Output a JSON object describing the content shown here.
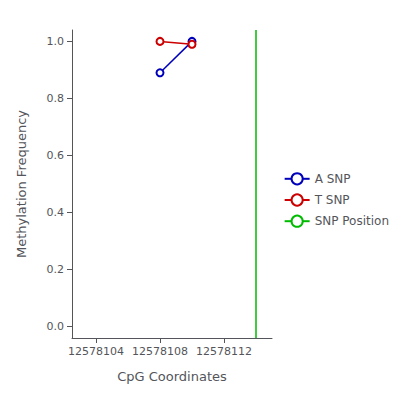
{
  "chart_data": {
    "type": "line",
    "xlabel": "CpG Coordinates",
    "ylabel": "Methylation Frequency",
    "x": [
      12578108,
      12578110
    ],
    "series": [
      {
        "name": "A SNP",
        "color": "#0000bb",
        "marker": "circle",
        "values": [
          0.89,
          1.0
        ]
      },
      {
        "name": "T SNP",
        "color": "#cc0000",
        "marker": "circle",
        "values": [
          1.0,
          0.99
        ]
      },
      {
        "name": "SNP Position",
        "type": "vline",
        "color": "#00bb00",
        "x": 12578114
      }
    ],
    "xlim": [
      12578102.5,
      12578115.0
    ],
    "xticks": [
      12578104,
      12578108,
      12578112
    ],
    "ylim": [
      -0.04,
      1.04
    ],
    "yticks": [
      {
        "value": 0.0,
        "label": "0.0"
      },
      0.2,
      0.4,
      0.6,
      0.8,
      {
        "value": 1.0,
        "label": "1.0"
      }
    ],
    "grid": false,
    "legend": "right"
  }
}
